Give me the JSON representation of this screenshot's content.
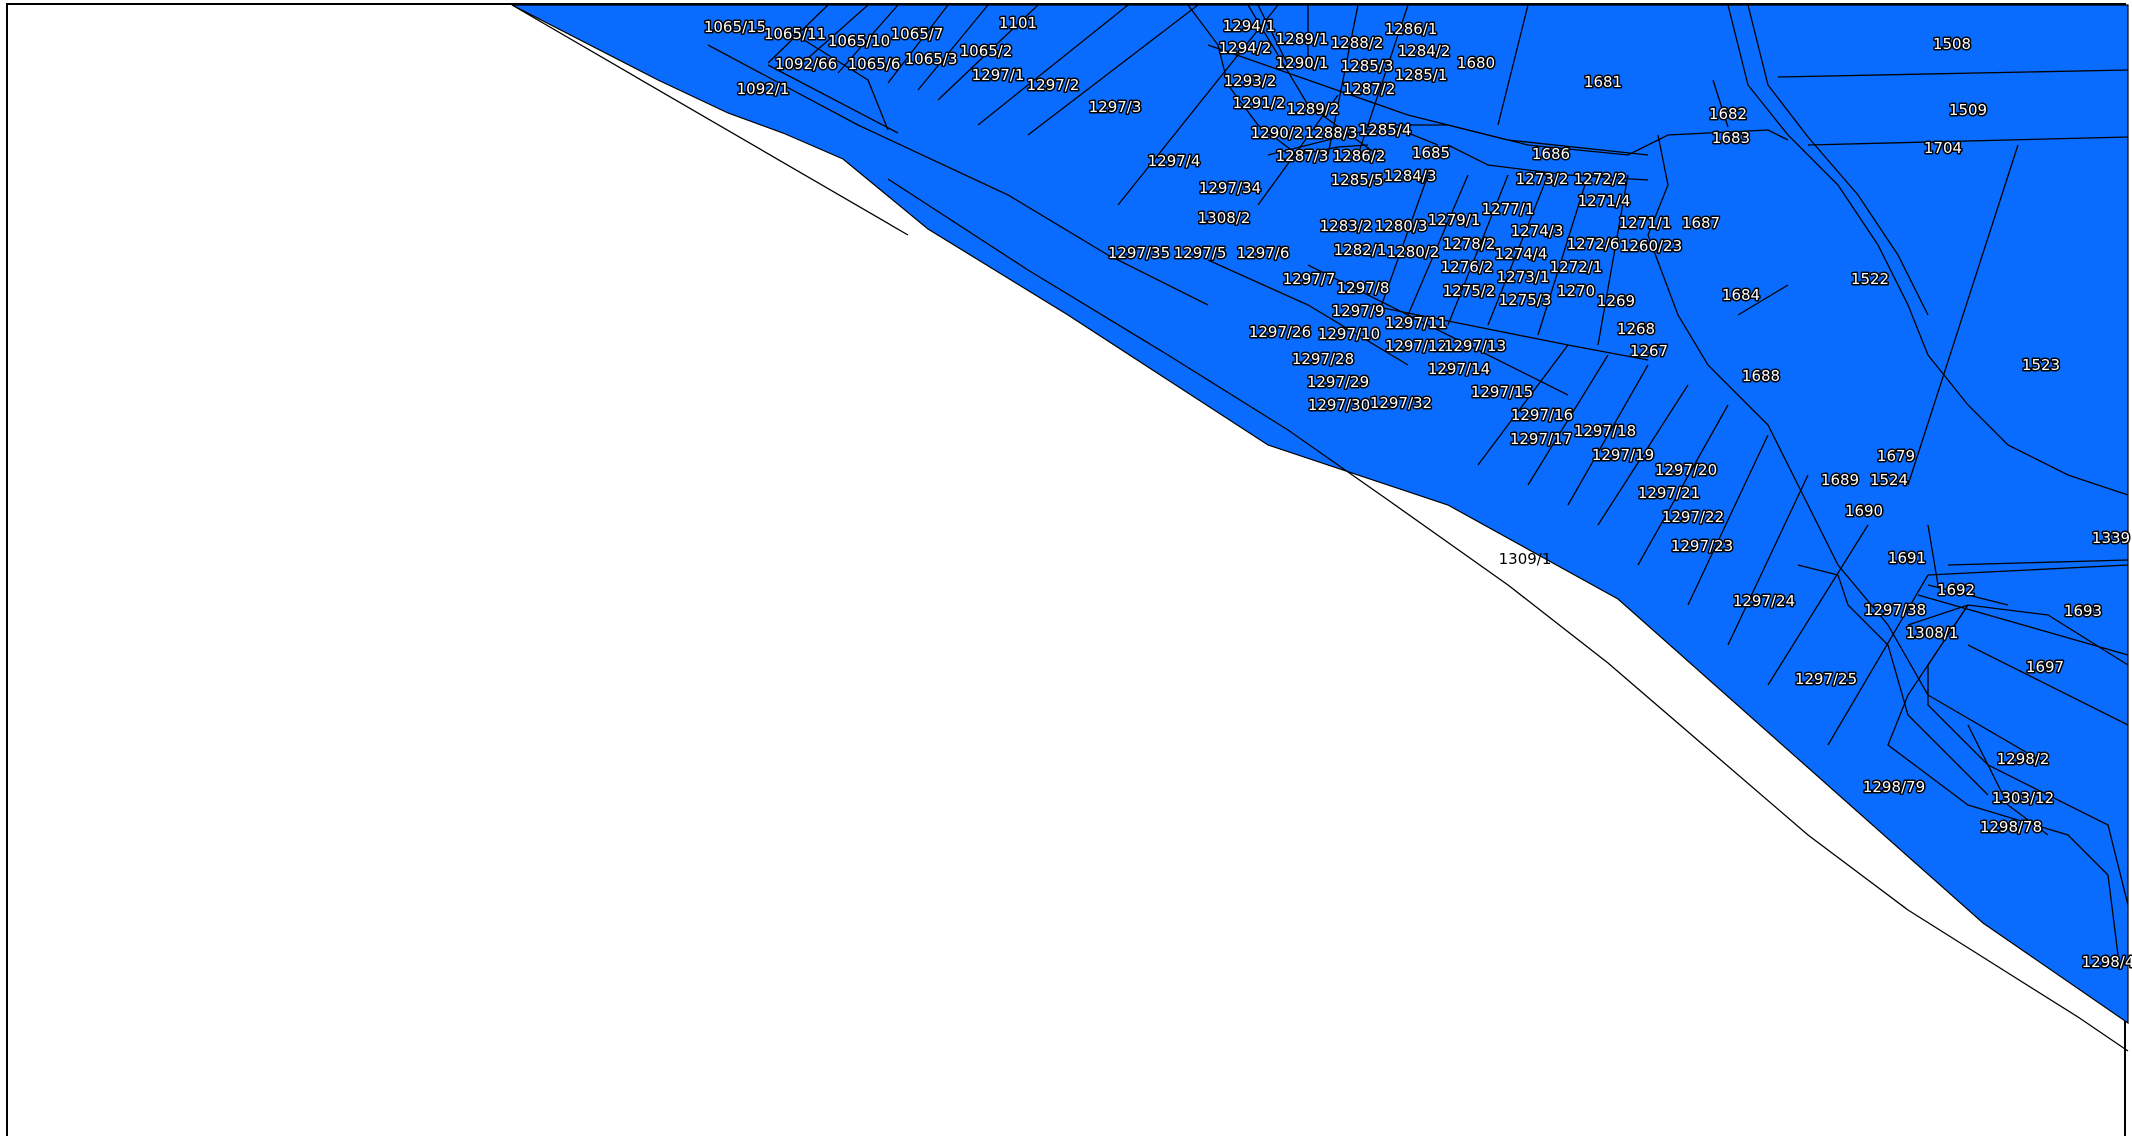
{
  "map": {
    "fill_color": "#0a6cff",
    "boundary_color": "#000000",
    "background_color": "#ffffff",
    "parcels": [
      "1065/15",
      "1065/11",
      "1065/10",
      "1065/7",
      "1101",
      "1092/66",
      "1065/6",
      "1065/3",
      "1065/2",
      "1092/1",
      "1297/1",
      "1297/2",
      "1297/3",
      "1294/1",
      "1289/1",
      "1288/2",
      "1286/1",
      "1294/2",
      "1290/1",
      "1284/2",
      "1293/2",
      "1285/3",
      "1285/1",
      "1680",
      "1291/2",
      "1289/2",
      "1287/2",
      "1681",
      "1508",
      "1509",
      "1682",
      "1683",
      "1704",
      "1290/2",
      "1288/3",
      "1285/4",
      "1686",
      "1685",
      "1297/4",
      "1287/3",
      "1286/2",
      "1284/3",
      "1285/5",
      "1273/2",
      "1272/2",
      "1297/34",
      "1271/4",
      "1277/1",
      "1308/2",
      "1283/2",
      "1280/3",
      "1279/1",
      "1271/1",
      "1687",
      "1274/3",
      "1278/2",
      "1272/6",
      "1260/23",
      "1297/35",
      "1297/5",
      "1297/6",
      "1282/1",
      "1280/2",
      "1274/4",
      "1276/2",
      "1272/1",
      "1273/1",
      "1297/7",
      "1297/8",
      "1522",
      "1275/2",
      "1275/3",
      "1270",
      "1269",
      "1684",
      "1297/9",
      "1297/11",
      "1297/26",
      "1297/10",
      "1268",
      "1297/12",
      "1297/13",
      "1267",
      "1523",
      "1297/28",
      "1297/14",
      "1688",
      "1297/29",
      "1297/15",
      "1297/30",
      "1297/32",
      "1297/16",
      "1297/18",
      "1297/17",
      "1679",
      "1297/19",
      "1689",
      "1524",
      "1297/20",
      "1297/21",
      "1690",
      "1297/22",
      "1339",
      "1297/23",
      "1691",
      "1692",
      "1297/24",
      "1297/38",
      "1693",
      "1308/1",
      "1697",
      "1297/25",
      "1298/2",
      "1298/79",
      "1303/12",
      "1298/78",
      "1298/4"
    ],
    "outside_label": "1309/1"
  }
}
